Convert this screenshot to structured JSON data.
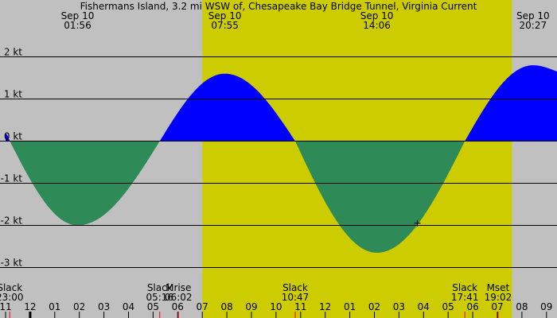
{
  "chart_data": {
    "type": "area",
    "title": "Fishermans Island, 3.2 mi WSW of, Chesapeake Bay Bridge Tunnel, Virginia Current",
    "y_unit": "kt",
    "ylim": [
      -3.1,
      2.2
    ],
    "y_ticks": [
      {
        "value": 2,
        "label": "2 kt"
      },
      {
        "value": 1,
        "label": "1 kt"
      },
      {
        "value": 0,
        "label": "0 kt"
      },
      {
        "value": -1,
        "label": "-1 kt"
      },
      {
        "value": -2,
        "label": "-2 kt"
      },
      {
        "value": -3,
        "label": "-3 kt"
      }
    ],
    "x_range_hours": [
      -1.0,
      22.2
    ],
    "daylight": {
      "start": 7.0,
      "end": 19.6
    },
    "colors": {
      "background": "#c0c0c0",
      "daylight": "#cccc00",
      "flood": "#0000ff",
      "ebb": "#2e8b57",
      "grid": "#000000",
      "tick_mark_highlight": "#ff0000"
    },
    "current_points": [
      {
        "t": -1.0,
        "v": 0.18
      },
      {
        "t": -0.83,
        "v": 0.0
      },
      {
        "t": 1.93,
        "v": -2.0
      },
      {
        "t": 5.27,
        "v": 0.0
      },
      {
        "t": 7.92,
        "v": 1.6
      },
      {
        "t": 10.78,
        "v": 0.0
      },
      {
        "t": 14.1,
        "v": -2.65
      },
      {
        "t": 17.68,
        "v": 0.0
      },
      {
        "t": 20.45,
        "v": 1.8
      },
      {
        "t": 22.2,
        "v": 1.55
      }
    ],
    "peak_labels": [
      {
        "t": 1.93,
        "date": "Sep 10",
        "time": "01:56"
      },
      {
        "t": 7.92,
        "date": "Sep 10",
        "time": "07:55"
      },
      {
        "t": 14.1,
        "date": "Sep 10",
        "time": "14:06"
      },
      {
        "t": 20.45,
        "date": "Sep 10",
        "time": "20:27"
      }
    ],
    "events": [
      {
        "t": -0.83,
        "name": "Slack",
        "time": "23:00"
      },
      {
        "t": 5.27,
        "name": "Slack",
        "time": "05:16"
      },
      {
        "t": 6.03,
        "name": "Mrise",
        "time": "06:02"
      },
      {
        "t": 10.78,
        "name": "Slack",
        "time": "10:47"
      },
      {
        "t": 17.68,
        "name": "Slack",
        "time": "17:41"
      },
      {
        "t": 19.03,
        "name": "Mset",
        "time": "19:02"
      },
      {
        "t": 22.6,
        "name": "Slack",
        "time": ""
      }
    ],
    "hour_labels": [
      {
        "t": -1,
        "label": "11"
      },
      {
        "t": 0,
        "label": "12"
      },
      {
        "t": 1,
        "label": "01"
      },
      {
        "t": 2,
        "label": "02"
      },
      {
        "t": 3,
        "label": "03"
      },
      {
        "t": 4,
        "label": "04"
      },
      {
        "t": 5,
        "label": "05"
      },
      {
        "t": 6,
        "label": "06"
      },
      {
        "t": 7,
        "label": "07"
      },
      {
        "t": 8,
        "label": "08"
      },
      {
        "t": 9,
        "label": "09"
      },
      {
        "t": 10,
        "label": "10"
      },
      {
        "t": 11,
        "label": "11"
      },
      {
        "t": 12,
        "label": "12"
      },
      {
        "t": 13,
        "label": "01"
      },
      {
        "t": 14,
        "label": "02"
      },
      {
        "t": 15,
        "label": "03"
      },
      {
        "t": 16,
        "label": "04"
      },
      {
        "t": 17,
        "label": "05"
      },
      {
        "t": 18,
        "label": "06"
      },
      {
        "t": 19,
        "label": "07"
      },
      {
        "t": 20,
        "label": "08"
      },
      {
        "t": 21,
        "label": "09"
      }
    ],
    "marker_point": {
      "t": 15.75,
      "v": -1.95
    }
  }
}
